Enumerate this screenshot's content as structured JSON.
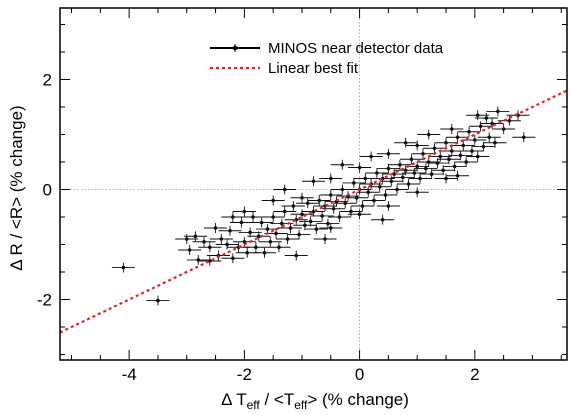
{
  "chart_data": {
    "type": "scatter",
    "title": "",
    "xlabel": {
      "prefix": "Δ T",
      "sub1": "eff",
      "middle": " / <T",
      "sub2": "eff",
      "suffix": "> (% change)"
    },
    "ylabel": "Δ R / <R> (% change)",
    "xlim": [
      -5.2,
      3.6
    ],
    "ylim": [
      -3.1,
      3.3
    ],
    "x_ticks": [
      -4,
      -2,
      0,
      2
    ],
    "y_ticks": [
      -2,
      0,
      2
    ],
    "grid": "dotted lines at x=0 and y=0",
    "legend_position": "top-center",
    "legend": [
      {
        "label": "MINOS near detector data",
        "style": "points-with-error-bars",
        "color": "#000000"
      },
      {
        "label": "Linear best fit",
        "style": "dotted-line",
        "color": "#e8202a"
      }
    ],
    "fit": {
      "name": "Linear best fit",
      "slope": 0.5,
      "intercept": 0.0,
      "color": "#e8202a"
    },
    "series": [
      {
        "name": "MINOS near detector data",
        "color": "#111111",
        "x_err": 0.2,
        "y_err": 0.09,
        "points": [
          [
            -4.1,
            -1.42
          ],
          [
            -3.5,
            -2.02
          ],
          [
            -2.95,
            -1.1
          ],
          [
            -2.85,
            -0.85
          ],
          [
            -2.8,
            -1.28
          ],
          [
            -2.7,
            -0.95
          ],
          [
            -2.6,
            -1.05
          ],
          [
            -2.5,
            -0.7
          ],
          [
            -2.45,
            -1.2
          ],
          [
            -2.4,
            -0.9
          ],
          [
            -2.3,
            -1.0
          ],
          [
            -2.25,
            -0.75
          ],
          [
            -2.2,
            -1.25
          ],
          [
            -2.1,
            -1.05
          ],
          [
            -2.05,
            -0.6
          ],
          [
            -2.0,
            -0.95
          ],
          [
            -1.95,
            -1.15
          ],
          [
            -1.9,
            -0.78
          ],
          [
            -1.85,
            -0.5
          ],
          [
            -1.8,
            -1.05
          ],
          [
            -1.75,
            -0.85
          ],
          [
            -1.7,
            -0.6
          ],
          [
            -1.65,
            -1.15
          ],
          [
            -1.6,
            -0.72
          ],
          [
            -1.55,
            -0.95
          ],
          [
            -1.5,
            -0.5
          ],
          [
            -1.45,
            -0.8
          ],
          [
            -1.4,
            -1.05
          ],
          [
            -1.35,
            -0.62
          ],
          [
            -1.3,
            -0.4
          ],
          [
            -1.25,
            -0.9
          ],
          [
            -1.2,
            -0.7
          ],
          [
            -1.15,
            -0.3
          ],
          [
            -1.1,
            -0.55
          ],
          [
            -1.05,
            -0.82
          ],
          [
            -1.0,
            -0.45
          ],
          [
            -0.95,
            -0.65
          ],
          [
            -0.9,
            -0.25
          ],
          [
            -0.85,
            -0.58
          ],
          [
            -0.8,
            -0.4
          ],
          [
            -0.75,
            -0.72
          ],
          [
            -0.7,
            -0.2
          ],
          [
            -0.65,
            -0.48
          ],
          [
            -0.6,
            -0.3
          ],
          [
            -0.55,
            -0.62
          ],
          [
            -0.5,
            -0.1
          ],
          [
            -0.45,
            -0.35
          ],
          [
            -0.4,
            -0.22
          ],
          [
            -0.35,
            -0.5
          ],
          [
            -0.3,
            0.0
          ],
          [
            -0.25,
            -0.25
          ],
          [
            -0.2,
            -0.12
          ],
          [
            -0.15,
            -0.4
          ],
          [
            -0.1,
            0.12
          ],
          [
            -0.05,
            -0.15
          ],
          [
            0.0,
            0.0
          ],
          [
            0.05,
            -0.3
          ],
          [
            0.1,
            0.2
          ],
          [
            0.15,
            -0.05
          ],
          [
            0.2,
            0.1
          ],
          [
            0.25,
            -0.2
          ],
          [
            0.3,
            0.3
          ],
          [
            0.35,
            0.05
          ],
          [
            0.4,
            0.2
          ],
          [
            0.45,
            -0.1
          ],
          [
            0.5,
            0.38
          ],
          [
            0.55,
            0.15
          ],
          [
            0.6,
            0.28
          ],
          [
            0.65,
            0.0
          ],
          [
            0.7,
            0.45
          ],
          [
            0.75,
            0.22
          ],
          [
            0.8,
            0.35
          ],
          [
            0.85,
            0.1
          ],
          [
            0.9,
            0.55
          ],
          [
            0.95,
            0.3
          ],
          [
            1.0,
            0.42
          ],
          [
            1.05,
            0.2
          ],
          [
            1.1,
            0.65
          ],
          [
            1.15,
            0.38
          ],
          [
            1.2,
            0.5
          ],
          [
            1.25,
            0.28
          ],
          [
            1.3,
            0.75
          ],
          [
            1.35,
            0.48
          ],
          [
            1.4,
            0.6
          ],
          [
            1.45,
            0.35
          ],
          [
            1.5,
            0.85
          ],
          [
            1.55,
            0.55
          ],
          [
            1.6,
            0.7
          ],
          [
            1.65,
            0.42
          ],
          [
            1.7,
            0.95
          ],
          [
            1.75,
            0.62
          ],
          [
            1.8,
            0.8
          ],
          [
            1.85,
            0.5
          ],
          [
            1.9,
            1.05
          ],
          [
            1.95,
            0.7
          ],
          [
            2.0,
            0.9
          ],
          [
            2.05,
            0.6
          ],
          [
            2.1,
            1.15
          ],
          [
            2.15,
            0.78
          ],
          [
            2.2,
            1.3
          ],
          [
            2.25,
            0.95
          ],
          [
            2.3,
            1.2
          ],
          [
            2.35,
            0.85
          ],
          [
            2.4,
            1.42
          ],
          [
            2.5,
            1.1
          ],
          [
            2.6,
            1.25
          ],
          [
            2.75,
            1.35
          ],
          [
            2.85,
            0.95
          ],
          [
            -1.0,
            -0.15
          ],
          [
            -0.5,
            0.2
          ],
          [
            0.0,
            0.4
          ],
          [
            0.5,
            0.65
          ],
          [
            1.0,
            0.8
          ],
          [
            -1.5,
            -0.2
          ],
          [
            -2.0,
            -0.4
          ],
          [
            0.0,
            -0.45
          ],
          [
            -0.5,
            -0.7
          ],
          [
            0.5,
            -0.3
          ],
          [
            1.0,
            -0.05
          ],
          [
            1.5,
            0.2
          ],
          [
            -1.1,
            -1.2
          ],
          [
            -0.3,
            0.45
          ],
          [
            0.8,
            0.85
          ],
          [
            1.2,
            1.0
          ],
          [
            -0.8,
            0.15
          ],
          [
            0.4,
            -0.55
          ],
          [
            -1.3,
            0.0
          ],
          [
            1.7,
            0.25
          ],
          [
            -0.6,
            -0.9
          ],
          [
            0.2,
            0.6
          ],
          [
            -2.6,
            -1.3
          ],
          [
            -2.2,
            -0.5
          ],
          [
            -3.0,
            -0.9
          ],
          [
            2.05,
            1.35
          ],
          [
            1.6,
            1.1
          ]
        ]
      }
    ]
  }
}
